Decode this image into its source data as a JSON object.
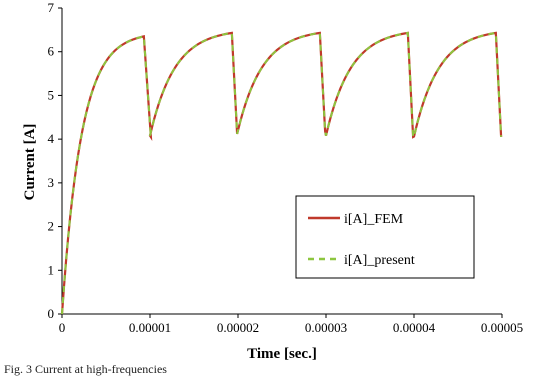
{
  "chart_data": {
    "type": "line",
    "xlabel": "Time [sec.]",
    "ylabel": "Current [A]",
    "xlim": [
      0,
      5e-05
    ],
    "ylim": [
      0,
      7
    ],
    "xticks": [
      "0",
      "0.00001",
      "0.00002",
      "0.00003",
      "0.00004",
      "0.00005"
    ],
    "xtick_values": [
      0,
      1e-05,
      2e-05,
      3e-05,
      4e-05,
      5e-05
    ],
    "yticks": [
      "0",
      "1",
      "2",
      "3",
      "4",
      "5",
      "6",
      "7"
    ],
    "ytick_values": [
      0,
      1,
      2,
      3,
      4,
      5,
      6,
      7
    ],
    "grid": false,
    "legend_position": "lower-right",
    "series": [
      {
        "name": "i[A]_FEM",
        "color": "#c0392b",
        "style": "solid",
        "x": [
          0,
          5e-07,
          1e-06,
          2e-06,
          3e-06,
          4e-06,
          5e-06,
          6e-06,
          7e-06,
          8e-06,
          8.9e-06,
          9.05e-06,
          9.8e-06,
          1.03e-05,
          1.15e-05,
          1.25e-05,
          1.35e-05,
          1.45e-05,
          1.55e-05,
          1.65e-05,
          1.75e-05,
          1.85e-05,
          1.93e-05,
          9.35e-06,
          1.98e-05,
          2e-05,
          2.15e-05,
          2.25e-05,
          2.35e-05,
          2.45e-05,
          2.55e-05,
          2.65e-05,
          2.75e-05,
          2.85e-05,
          2.93e-05
        ],
        "y": [
          0,
          1.4,
          2.5,
          3.9,
          4.8,
          5.4,
          5.8,
          6.05,
          6.2,
          6.3,
          6.35,
          6.2,
          4.7,
          4.05,
          4.75,
          5.2,
          5.55,
          5.8,
          6.0,
          6.15,
          6.27,
          6.36,
          6.42,
          6.3,
          4.8,
          4.12,
          4.75,
          5.2,
          5.55,
          5.8,
          6.0,
          6.15,
          6.27,
          6.36,
          6.42
        ]
      },
      {
        "name": "i[A]_present",
        "color": "#8dc63f",
        "style": "dashed",
        "x": [
          0,
          5e-07,
          1e-06,
          2e-06,
          3e-06,
          4e-06,
          5e-06,
          6e-06,
          7e-06,
          8e-06,
          8.9e-06,
          9.05e-06,
          9.8e-06,
          1.03e-05,
          1.15e-05,
          1.25e-05,
          1.35e-05,
          1.45e-05,
          1.55e-05,
          1.65e-05,
          1.75e-05,
          1.85e-05,
          1.93e-05,
          9.35e-06,
          1.98e-05,
          2e-05,
          2.15e-05,
          2.25e-05,
          2.35e-05,
          2.45e-05,
          2.55e-05,
          2.65e-05,
          2.75e-05,
          2.85e-05,
          2.93e-05
        ],
        "y": [
          0,
          1.4,
          2.5,
          3.9,
          4.8,
          5.4,
          5.8,
          6.05,
          6.2,
          6.3,
          6.35,
          6.2,
          4.7,
          4.05,
          4.75,
          5.2,
          5.55,
          5.8,
          6.0,
          6.15,
          6.27,
          6.36,
          6.42,
          6.3,
          4.8,
          4.12,
          4.75,
          5.2,
          5.55,
          5.8,
          6.0,
          6.15,
          6.27,
          6.36,
          6.42
        ]
      }
    ]
  },
  "caption": "Fig. 3 Current at high-frequencies"
}
